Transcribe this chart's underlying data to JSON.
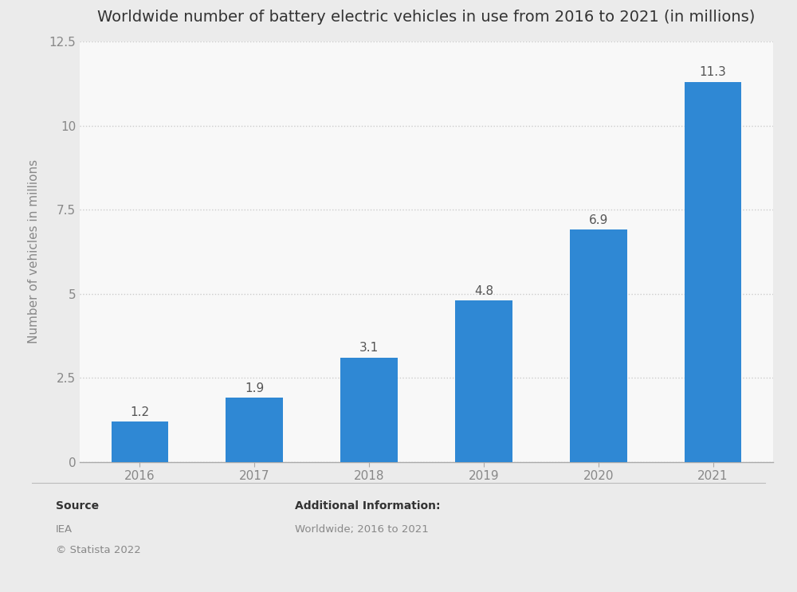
{
  "title": "Worldwide number of battery electric vehicles in use from 2016 to 2021 (in millions)",
  "years": [
    "2016",
    "2017",
    "2018",
    "2019",
    "2020",
    "2021"
  ],
  "values": [
    1.2,
    1.9,
    3.1,
    4.8,
    6.9,
    11.3
  ],
  "bar_color": "#2f88d4",
  "figure_bg_color": "#ebebeb",
  "plot_bg_color": "#f8f8f8",
  "ylabel": "Number of vehicles in millions",
  "ylim": [
    0,
    12.5
  ],
  "yticks": [
    0,
    2.5,
    5.0,
    7.5,
    10.0,
    12.5
  ],
  "grid_color": "#cccccc",
  "title_fontsize": 14,
  "label_fontsize": 11,
  "tick_fontsize": 11,
  "bar_label_fontsize": 11,
  "source_label": "Source",
  "source_line1": "IEA",
  "source_line2": "© Statista 2022",
  "additional_label": "Additional Information:",
  "additional_text": "Worldwide; 2016 to 2021"
}
